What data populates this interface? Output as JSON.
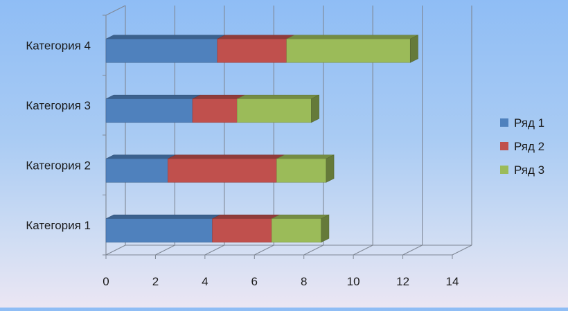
{
  "chart_data": {
    "type": "bar",
    "orientation": "horizontal",
    "stacked": true,
    "style": "3d",
    "categories": [
      "Категория 1",
      "Категория 2",
      "Категория 3",
      "Категория 4"
    ],
    "series": [
      {
        "name": "Ряд 1",
        "values": [
          4.3,
          2.5,
          3.5,
          4.5
        ],
        "color": "#4f81bd"
      },
      {
        "name": "Ряд 2",
        "values": [
          2.4,
          4.4,
          1.8,
          2.8
        ],
        "color": "#c0504d"
      },
      {
        "name": "Ряд 3",
        "values": [
          2.0,
          2.0,
          3.0,
          5.0
        ],
        "color": "#9bbb59"
      }
    ],
    "xlim": [
      0,
      14
    ],
    "x_ticks": [
      "0",
      "2",
      "4",
      "6",
      "8",
      "10",
      "12",
      "14"
    ],
    "grid": true,
    "legend_position": "right"
  }
}
